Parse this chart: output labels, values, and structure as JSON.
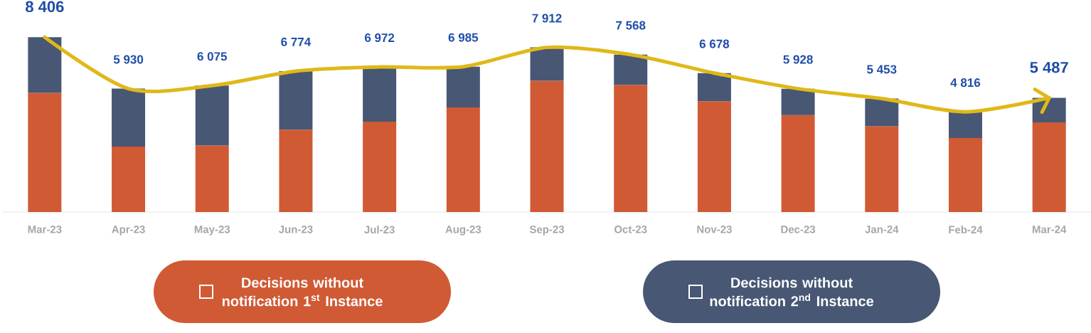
{
  "chart_data": {
    "type": "bar",
    "stacked": true,
    "legend": "bottom",
    "categories": [
      "Mar-23",
      "Apr-23",
      "May-23",
      "Jun-23",
      "Jul-23",
      "Aug-23",
      "Sep-23",
      "Oct-23",
      "Nov-23",
      "Dec-23",
      "Jan-24",
      "Feb-24",
      "Mar-24"
    ],
    "series": [
      {
        "name": "Decisions without notification 1$^{st}$ Instance",
        "color": "#d05a34",
        "values": [
          5730,
          3150,
          3200,
          3960,
          4340,
          5030,
          6310,
          6110,
          5330,
          4660,
          4130,
          3560,
          4310
        ]
      },
      {
        "name": "Decisions without notification 2$^{nd}$ Instance",
        "color": "#475774",
        "values": [
          2676,
          2780,
          2875,
          2814,
          2632,
          1955,
          1602,
          1458,
          1348,
          1268,
          1323,
          1256,
          1177
        ]
      },
      {
        "type": "line",
        "color": "#e0b818",
        "values": [
          8406,
          5930,
          6075,
          6774,
          6972,
          6985,
          7912,
          7568,
          6678,
          5928,
          5453,
          4816,
          5487
        ],
        "value_labels": [
          "8 406",
          "5 930",
          "6 075",
          "6 774",
          "6 972",
          "6 985",
          "7 912",
          "7 568",
          "6 678",
          "5 928",
          "5 453",
          "4 816",
          "5 487"
        ]
      }
    ]
  }
}
